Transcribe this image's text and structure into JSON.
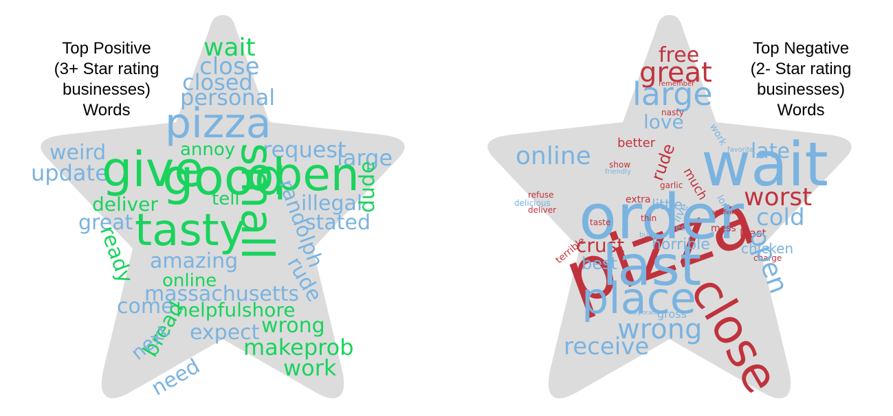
{
  "colors": {
    "positive_green": "#19d35c",
    "neutral_blue": "#7ab3e0",
    "negative_red": "#c0333d",
    "star_fill": "#dcdcdc"
  },
  "left": {
    "caption": [
      "Top Positive",
      "(3+ Star rating",
      "businesses)",
      "Words"
    ],
    "words": {
      "wait": "wait",
      "close": "close",
      "closed": "closed",
      "personal": "personal",
      "pizza": "pizza",
      "annoy": "annoy",
      "request": "request",
      "large": "large",
      "weird": "weird",
      "update": "update",
      "give": "give",
      "good": "good",
      "open": "open",
      "tell": "tell",
      "illegal": "illegal",
      "dude": "dude",
      "deliver": "deliver",
      "great": "great",
      "tasty": "tasty",
      "stated": "stated",
      "ready": "ready",
      "small": "small",
      "randolph": "randolph",
      "amazing": "amazing",
      "rude": "rude",
      "online": "online",
      "massachusetts": "massachusetts",
      "come": "come",
      "helpfulshore": "helpfulshore",
      "bread": "bread",
      "next": "next",
      "wrong": "wrong",
      "expect": "expect",
      "makeprob": "makeprob",
      "need": "need",
      "work": "work"
    }
  },
  "right": {
    "caption": [
      "Top Negative",
      "(2- Star rating",
      "businesses)",
      "Words"
    ],
    "words": {
      "free": "free",
      "great": "great",
      "remember": "remember",
      "large": "large",
      "love": "love",
      "nasty": "nasty",
      "better": "better",
      "online": "online",
      "favorite": "favorite",
      "work": "work",
      "late": "late",
      "rude": "rude",
      "show": "show",
      "friendly": "friendly",
      "wait": "wait",
      "pizza": "pizza",
      "garlic": "garlic",
      "much": "much",
      "refuse": "refuse",
      "delicious": "delicious",
      "extra": "extra",
      "little": "little",
      "long": "long",
      "worst": "worst",
      "order": "order",
      "deliver": "deliver",
      "thin": "thin",
      "live": "live",
      "stuffed": "stuffed",
      "cold": "cold",
      "taste": "taste",
      "fresh": "fresh",
      "mess": "mess",
      "least": "least",
      "terrible": "terrible",
      "crust": "crust",
      "horrible": "horrible",
      "chicken": "chicken",
      "busy": "busy",
      "best": "best",
      "charge": "charge",
      "last": "last",
      "open": "open",
      "place": "place",
      "close": "close",
      "corporate": "corporate",
      "gross": "gross",
      "wrong": "wrong",
      "receive": "receive"
    }
  }
}
